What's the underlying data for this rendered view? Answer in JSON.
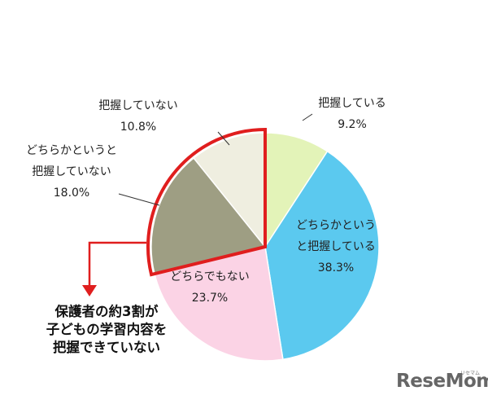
{
  "chart_data": {
    "type": "pie",
    "slices": [
      {
        "label_lines": [
          "把握している"
        ],
        "value": 9.2,
        "value_text": "9.2%",
        "color": "#e3f3b8"
      },
      {
        "label_lines": [
          "どちらかという",
          "と把握している"
        ],
        "value": 38.3,
        "value_text": "38.3%",
        "color": "#5bc9ef"
      },
      {
        "label_lines": [
          "どちらでもない"
        ],
        "value": 23.7,
        "value_text": "23.7%",
        "color": "#fbd3e5"
      },
      {
        "label_lines": [
          "どちらかというと",
          "把握していない"
        ],
        "value": 18.0,
        "value_text": "18.0%",
        "color": "#9e9e83"
      },
      {
        "label_lines": [
          "把握していない"
        ],
        "value": 10.8,
        "value_text": "10.8%",
        "color": "#efeee0"
      }
    ],
    "start": "12 o'clock",
    "direction": "clockwise",
    "highlight": {
      "slices": [
        3,
        4
      ],
      "color": "#e01e1e"
    },
    "annotation_lines": [
      "保護者の約3割が",
      "子どもの学習内容を",
      "把握できていない"
    ]
  },
  "watermark": {
    "logo": "ReseMom",
    "kana": "リセマム"
  }
}
